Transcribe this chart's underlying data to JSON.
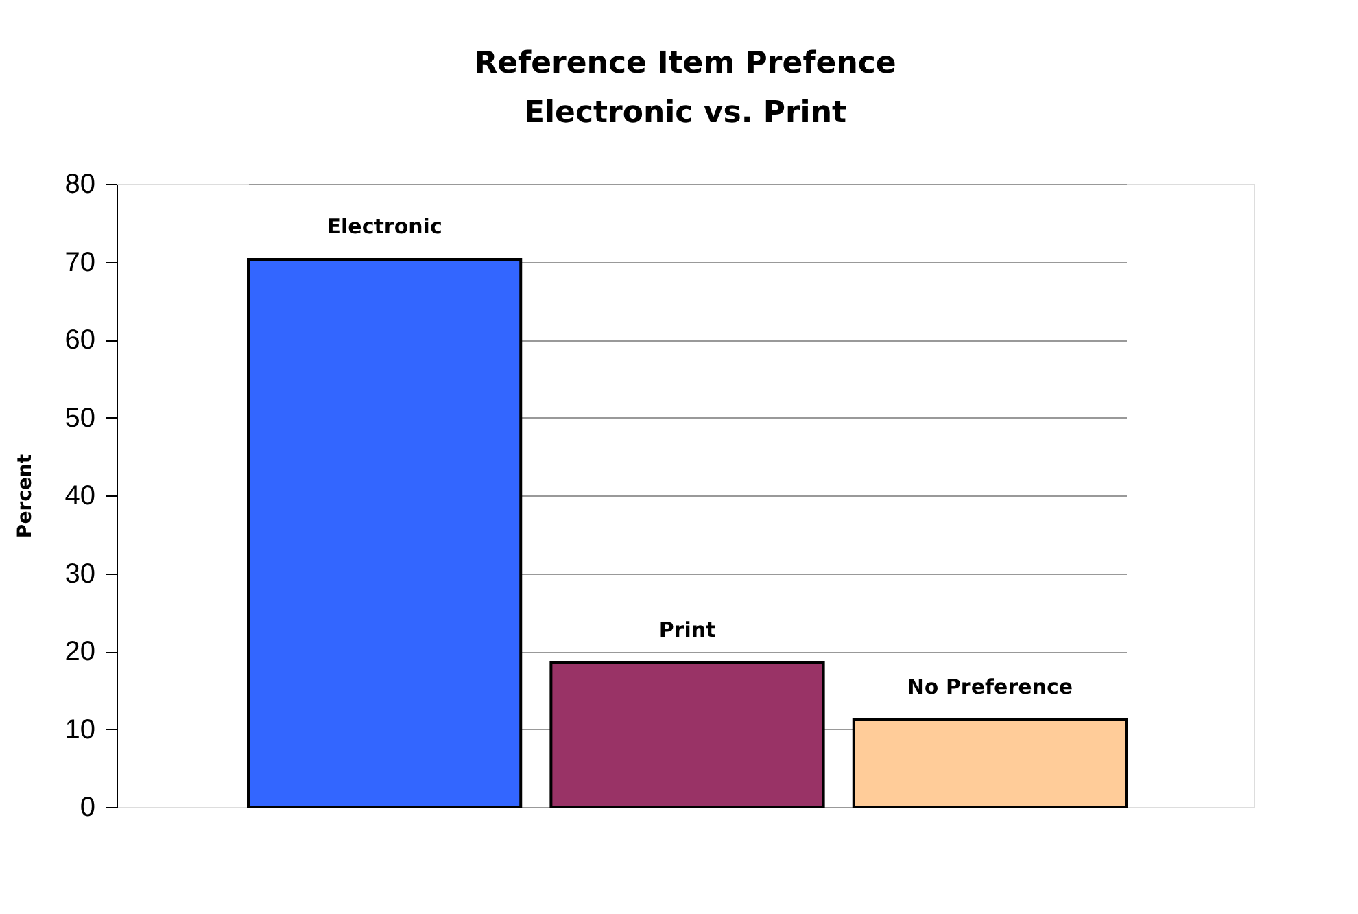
{
  "chart_data": {
    "type": "bar",
    "title": "Reference Item Prefence",
    "subtitle": "Electronic vs. Print",
    "ylabel": "Percent",
    "categories": [
      "Electronic",
      "Print",
      "No Preference"
    ],
    "values": [
      70.3,
      18.5,
      11.2
    ],
    "colors": [
      "#3366ff",
      "#993366",
      "#ffcc99"
    ],
    "ylim": [
      0,
      80
    ],
    "yticks": [
      0,
      10,
      20,
      30,
      40,
      50,
      60,
      70,
      80
    ],
    "grid": "y",
    "legend": false
  }
}
